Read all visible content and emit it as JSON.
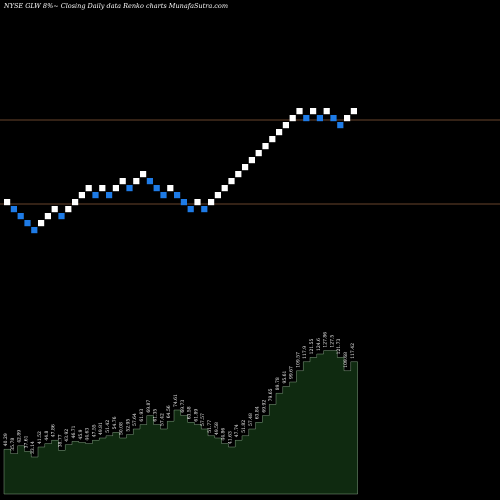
{
  "header": {
    "text": "NYSE GLW 8%~  Closing Daily data  Renko  charts MunafaSutra.com"
  },
  "colors": {
    "background": "#000000",
    "up_brick": "#ffffff",
    "down_brick": "#1e7be6",
    "reference_line": "#8a5a3a",
    "volume_fill": "#0f2a10",
    "volume_outline": "#9fbf9f"
  },
  "chart_data": {
    "type": "renko",
    "bricks": [
      {
        "d": "up",
        "level": 4
      },
      {
        "d": "down",
        "level": 3
      },
      {
        "d": "down",
        "level": 2
      },
      {
        "d": "down",
        "level": 1
      },
      {
        "d": "down",
        "level": 0
      },
      {
        "d": "up",
        "level": 1
      },
      {
        "d": "up",
        "level": 2
      },
      {
        "d": "up",
        "level": 3
      },
      {
        "d": "down",
        "level": 2
      },
      {
        "d": "up",
        "level": 3
      },
      {
        "d": "up",
        "level": 4
      },
      {
        "d": "up",
        "level": 5
      },
      {
        "d": "up",
        "level": 6
      },
      {
        "d": "down",
        "level": 5
      },
      {
        "d": "up",
        "level": 6
      },
      {
        "d": "down",
        "level": 5
      },
      {
        "d": "up",
        "level": 6
      },
      {
        "d": "up",
        "level": 7
      },
      {
        "d": "down",
        "level": 6
      },
      {
        "d": "up",
        "level": 7
      },
      {
        "d": "up",
        "level": 8
      },
      {
        "d": "down",
        "level": 7
      },
      {
        "d": "down",
        "level": 6
      },
      {
        "d": "down",
        "level": 5
      },
      {
        "d": "up",
        "level": 6
      },
      {
        "d": "down",
        "level": 5
      },
      {
        "d": "down",
        "level": 4
      },
      {
        "d": "down",
        "level": 3
      },
      {
        "d": "up",
        "level": 4
      },
      {
        "d": "down",
        "level": 3
      },
      {
        "d": "up",
        "level": 4
      },
      {
        "d": "up",
        "level": 5
      },
      {
        "d": "up",
        "level": 6
      },
      {
        "d": "up",
        "level": 7
      },
      {
        "d": "up",
        "level": 8
      },
      {
        "d": "up",
        "level": 9
      },
      {
        "d": "up",
        "level": 10
      },
      {
        "d": "up",
        "level": 11
      },
      {
        "d": "up",
        "level": 12
      },
      {
        "d": "up",
        "level": 13
      },
      {
        "d": "up",
        "level": 14
      },
      {
        "d": "up",
        "level": 15
      },
      {
        "d": "up",
        "level": 16
      },
      {
        "d": "up",
        "level": 17
      },
      {
        "d": "down",
        "level": 16
      },
      {
        "d": "up",
        "level": 17
      },
      {
        "d": "down",
        "level": 16
      },
      {
        "d": "up",
        "level": 17
      },
      {
        "d": "down",
        "level": 16
      },
      {
        "d": "down",
        "level": 15
      },
      {
        "d": "up",
        "level": 16
      },
      {
        "d": "up",
        "level": 17
      }
    ],
    "volume": [
      40,
      36,
      43,
      38,
      33,
      42,
      45,
      48,
      39,
      44,
      47,
      46,
      45,
      48,
      50,
      52,
      55,
      50,
      53,
      58,
      62,
      70,
      62,
      58,
      65,
      75,
      70,
      64,
      62,
      58,
      52,
      50,
      45,
      42,
      48,
      52,
      58,
      64,
      70,
      80,
      90,
      96,
      100,
      110,
      118,
      122,
      125,
      128,
      128,
      122,
      110,
      118
    ],
    "volume_labels": [
      "40.29",
      "35.78",
      "42.89",
      "37.61",
      "33.14",
      "41.52",
      "44.8",
      "47.86",
      "38.77",
      "43.92",
      "46.71",
      "45.9",
      "44.63",
      "47.55",
      "49.81",
      "51.42",
      "54.76",
      "50.08",
      "52.95",
      "57.64",
      "61.93",
      "69.87",
      "61.35",
      "57.42",
      "64.56",
      "74.61",
      "69.73",
      "63.58",
      "61.89",
      "57.57",
      "51.77",
      "49.58",
      "44.86",
      "41.63",
      "47.74",
      "51.82",
      "57.48",
      "63.84",
      "69.92",
      "79.65",
      "89.78",
      "95.61",
      "99.67",
      "109.57",
      "117.9",
      "121.55",
      "124.6",
      "127.86",
      "127.5",
      "121.73",
      "109.68",
      "117.42"
    ]
  }
}
